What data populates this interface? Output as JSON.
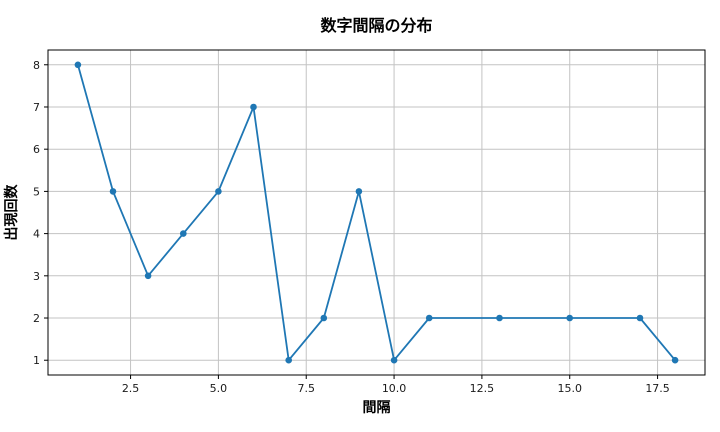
{
  "chart_data": {
    "type": "line",
    "title": "数字間隔の分布",
    "xlabel": "間隔",
    "ylabel": "出現回数",
    "x": [
      1,
      2,
      3,
      4,
      5,
      6,
      7,
      8,
      9,
      10,
      11,
      13,
      15,
      17,
      18
    ],
    "y": [
      8,
      5,
      3,
      4,
      5,
      7,
      1,
      2,
      5,
      1,
      2,
      2,
      2,
      2,
      1
    ],
    "x_tick_values": [
      2.5,
      5,
      7.5,
      10,
      12.5,
      15,
      17.5
    ],
    "x_tick_labels": [
      "2.5",
      "5.0",
      "7.5",
      "10.0",
      "12.5",
      "15.0",
      "17.5"
    ],
    "y_tick_values": [
      1,
      2,
      3,
      4,
      5,
      6,
      7,
      8
    ],
    "y_tick_labels": [
      "1",
      "2",
      "3",
      "4",
      "5",
      "6",
      "7",
      "8"
    ],
    "xlim": [
      0.15,
      18.85
    ],
    "ylim": [
      0.65,
      8.35
    ],
    "grid": true,
    "legend_position": "none",
    "colors": {
      "line": "#1f77b4",
      "marker": "#1f77b4",
      "grid": "#c3c3c3",
      "spine": "#000000",
      "text": "#000000",
      "background": "#ffffff"
    }
  }
}
